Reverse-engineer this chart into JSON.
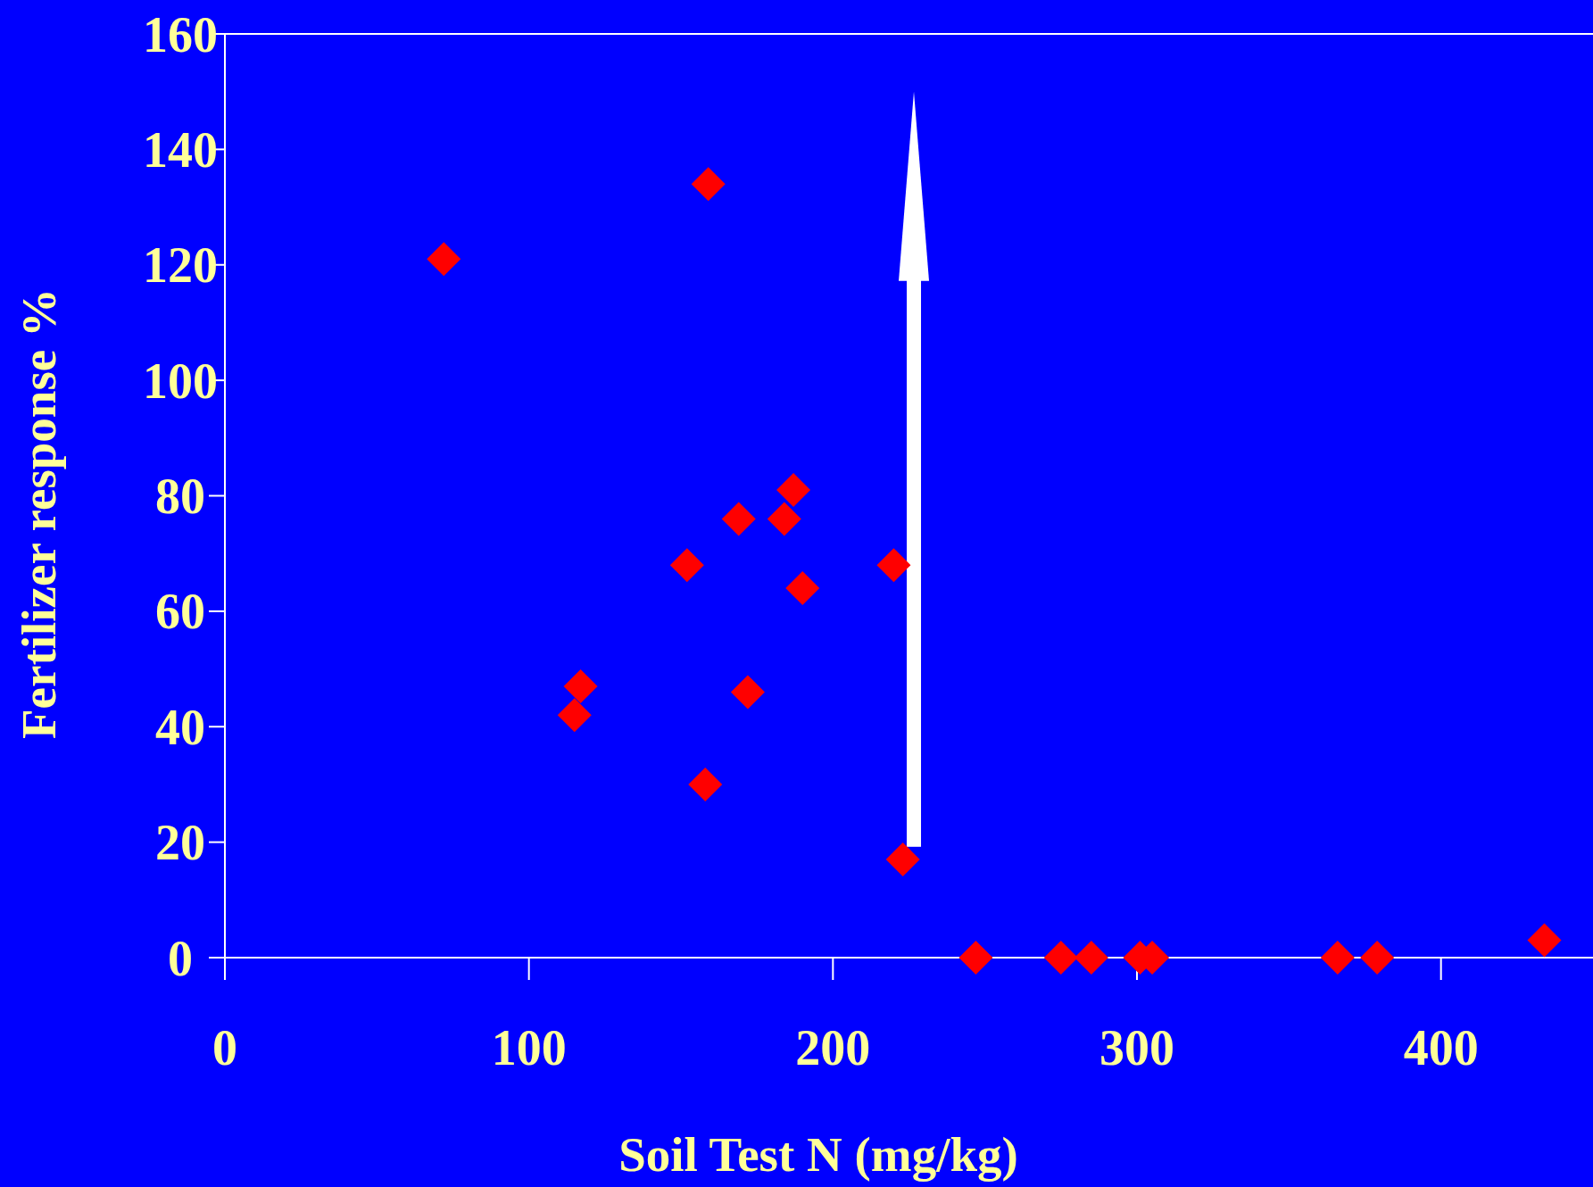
{
  "chart_data": {
    "type": "scatter",
    "xlabel": "Soil Test N (mg/kg)",
    "ylabel": "Fertilizer response %",
    "series": [
      {
        "color": "#ff0000",
        "x": [
          72,
          159,
          115,
          117,
          152,
          158,
          169,
          172,
          184,
          187,
          190,
          220,
          223,
          247,
          275,
          285,
          301,
          305,
          366,
          379,
          434
        ],
        "values": [
          121,
          134,
          42,
          47,
          68,
          30,
          76,
          46,
          76,
          81,
          64,
          68,
          17,
          0,
          0,
          0,
          0,
          0,
          0,
          0,
          3
        ]
      }
    ],
    "xlim": [
      0,
      450
    ],
    "ylim": [
      0,
      160
    ],
    "xticks": [
      0,
      100,
      200,
      300,
      400
    ],
    "yticks": [
      0,
      20,
      40,
      60,
      80,
      100,
      120,
      140,
      160
    ],
    "marker": "diamond",
    "grid": false
  }
}
